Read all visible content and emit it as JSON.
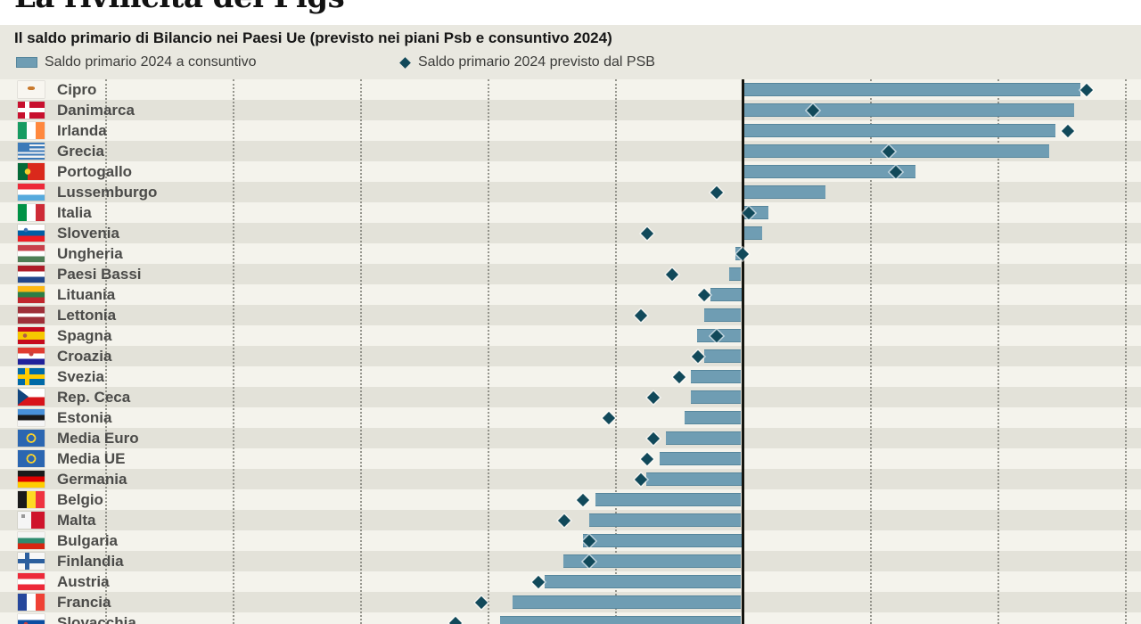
{
  "header": {
    "title": "La rivincita dei Pigs",
    "subtitle": "Il saldo primario di Bilancio nei Paesi Ue (previsto nei piani Psb e consuntivo 2024)"
  },
  "legend": [
    {
      "swatch": "bar-swatch",
      "label": "Saldo primario 2024 a consuntivo"
    },
    {
      "swatch": "diamond-swatch",
      "label": "Saldo primario 2024 previsto dal PSB"
    }
  ],
  "colors": {
    "background": "#e9e8e0",
    "header_background": "#ffffff",
    "stripe_light": "#f4f3ec",
    "stripe_dark": "#e3e2d9",
    "bar": "#6f9db3",
    "bar_edge": "#56869c",
    "diamond": "#11495a",
    "zero_line": "#15150f",
    "gridline": "#85857d",
    "label_text": "#4b4b49"
  },
  "chart_data": {
    "type": "bar",
    "orientation": "horizontal",
    "title": "La rivincita dei Pigs",
    "subtitle": "Il saldo primario di Bilancio nei Paesi Ue (previsto nei piani Psb e consuntivo 2024)",
    "x_axis": {
      "gridline_values": [
        -10,
        -8,
        -6,
        -4,
        -2,
        0,
        2,
        4,
        6
      ],
      "grid_step": 2,
      "tick_labels_visible": false,
      "xlim": [
        -10.5,
        6.3
      ]
    },
    "legend_position": "top",
    "series_names": [
      "Saldo primario 2024 a consuntivo",
      "Saldo primario 2024 previsto dal PSB"
    ],
    "countries": [
      {
        "name": "Cipro",
        "flag": "flag-cyprus",
        "consuntivo": 5.3,
        "psb": 5.4
      },
      {
        "name": "Danimarca",
        "flag": "flag-denmark",
        "consuntivo": 5.2,
        "psb": 1.1
      },
      {
        "name": "Irlanda",
        "flag": "flag-ireland",
        "consuntivo": 4.9,
        "psb": 5.1
      },
      {
        "name": "Grecia",
        "flag": "flag-greece",
        "consuntivo": 4.8,
        "psb": 2.3
      },
      {
        "name": "Portogallo",
        "flag": "flag-portugal",
        "consuntivo": 2.7,
        "psb": 2.4
      },
      {
        "name": "Lussemburgo",
        "flag": "flag-luxembourg",
        "consuntivo": 1.3,
        "psb": -0.4
      },
      {
        "name": "Italia",
        "flag": "flag-italy",
        "consuntivo": 0.4,
        "psb": 0.1
      },
      {
        "name": "Slovenia",
        "flag": "flag-slovenia",
        "consuntivo": 0.3,
        "psb": -1.5
      },
      {
        "name": "Ungheria",
        "flag": "flag-hungary",
        "consuntivo": -0.1,
        "psb": 0.0
      },
      {
        "name": "Paesi Bassi",
        "flag": "flag-netherlands",
        "consuntivo": -0.2,
        "psb": -1.1
      },
      {
        "name": "Lituania",
        "flag": "flag-lithuania",
        "consuntivo": -0.5,
        "psb": -0.6
      },
      {
        "name": "Lettonia",
        "flag": "flag-latvia",
        "consuntivo": -0.6,
        "psb": -1.6
      },
      {
        "name": "Spagna",
        "flag": "flag-spain",
        "consuntivo": -0.7,
        "psb": -0.4
      },
      {
        "name": "Croazia",
        "flag": "flag-croatia",
        "consuntivo": -0.6,
        "psb": -0.7
      },
      {
        "name": "Svezia",
        "flag": "flag-sweden",
        "consuntivo": -0.8,
        "psb": -1.0
      },
      {
        "name": "Rep. Ceca",
        "flag": "flag-czech",
        "consuntivo": -0.8,
        "psb": -1.4
      },
      {
        "name": "Estonia",
        "flag": "flag-estonia",
        "consuntivo": -0.9,
        "psb": -2.1
      },
      {
        "name": "Media Euro",
        "flag": "flag-eu",
        "consuntivo": -1.2,
        "psb": -1.4
      },
      {
        "name": "Media UE",
        "flag": "flag-eu",
        "consuntivo": -1.3,
        "psb": -1.5
      },
      {
        "name": "Germania",
        "flag": "flag-germany",
        "consuntivo": -1.5,
        "psb": -1.6
      },
      {
        "name": "Belgio",
        "flag": "flag-belgium",
        "consuntivo": -2.3,
        "psb": -2.5
      },
      {
        "name": "Malta",
        "flag": "flag-malta",
        "consuntivo": -2.4,
        "psb": -2.8
      },
      {
        "name": "Bulgaria",
        "flag": "flag-bulgaria",
        "consuntivo": -2.5,
        "psb": -2.4
      },
      {
        "name": "Finlandia",
        "flag": "flag-finland",
        "consuntivo": -2.8,
        "psb": -2.4
      },
      {
        "name": "Austria",
        "flag": "flag-austria",
        "consuntivo": -3.1,
        "psb": -3.2
      },
      {
        "name": "Francia",
        "flag": "flag-france",
        "consuntivo": -3.6,
        "psb": -4.1
      },
      {
        "name": "Slovacchia",
        "flag": "flag-slovakia",
        "consuntivo": -3.8,
        "psb": -4.5
      }
    ]
  }
}
